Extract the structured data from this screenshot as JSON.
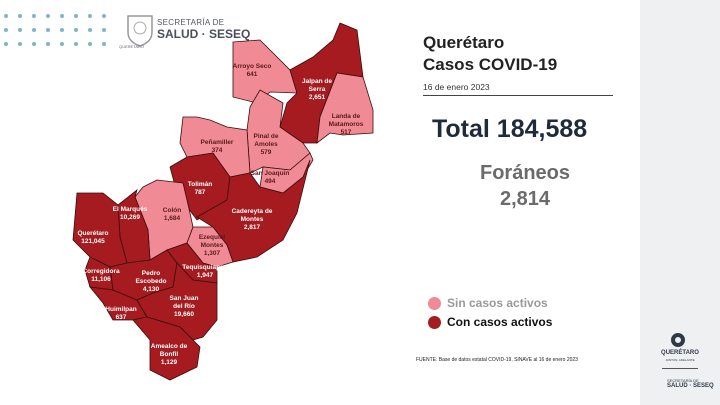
{
  "header": {
    "org_line1": "SECRETARÍA DE",
    "org_line2": "SALUD · SESEQ",
    "seal_text": "QUERÉTARO"
  },
  "title_line1": "Querétaro",
  "title_line2": "Casos COVID-19",
  "date": "16 de enero 2023",
  "total_label": "Total 184,588",
  "foraneos_label": "Foráneos",
  "foraneos_value": "2,814",
  "legend": [
    {
      "label": "Sin casos activos",
      "color": "#f08a95"
    },
    {
      "label": "Con casos activos",
      "color": "#a51b1f"
    }
  ],
  "source": "FUENTE: Base de datos estatal  COVID-19,  SINAVE  al 16 de enero 2023",
  "colors": {
    "sin": "#f08a95",
    "con": "#a51b1f",
    "border": "#3a0d0d"
  },
  "municipios": [
    {
      "name": "Arroyo Seco",
      "cases": "641",
      "status": "sin"
    },
    {
      "name": "Jalpan de Serra",
      "cases": "2,651",
      "status": "con"
    },
    {
      "name": "Landa de Matamoros",
      "cases": "517",
      "status": "sin"
    },
    {
      "name": "Pinal de Amoles",
      "cases": "579",
      "status": "sin"
    },
    {
      "name": "Peñamiller",
      "cases": "374",
      "status": "sin"
    },
    {
      "name": "San Joaquín",
      "cases": "494",
      "status": "sin"
    },
    {
      "name": "Tolimán",
      "cases": "787",
      "status": "con"
    },
    {
      "name": "Cadereyta de Montes",
      "cases": "2,817",
      "status": "con"
    },
    {
      "name": "Colón",
      "cases": "1,684",
      "status": "sin"
    },
    {
      "name": "Ezequiel Montes",
      "cases": "1,307",
      "status": "sin"
    },
    {
      "name": "El Marqués",
      "cases": "10,269",
      "status": "con"
    },
    {
      "name": "Querétaro",
      "cases": "121,045",
      "status": "con"
    },
    {
      "name": "Corregidora",
      "cases": "11,106",
      "status": "con"
    },
    {
      "name": "Huimilpan",
      "cases": "637",
      "status": "con"
    },
    {
      "name": "Pedro Escobedo",
      "cases": "4,130",
      "status": "con"
    },
    {
      "name": "Tequisquiapan",
      "cases": "1,947",
      "status": "con"
    },
    {
      "name": "San Juan del Río",
      "cases": "19,660",
      "status": "con"
    },
    {
      "name": "Amealco de Bonfil",
      "cases": "1,129",
      "status": "con"
    }
  ],
  "side_panel": {
    "brand": "QUERÉTARO",
    "tagline": "JUNTOS, ADELANTE",
    "org_line1": "SECRETARÍA DE",
    "org_line2": "SALUD · SESEQ"
  }
}
